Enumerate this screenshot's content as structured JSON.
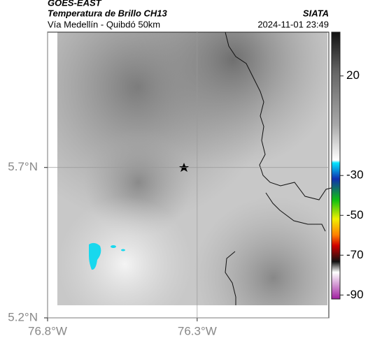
{
  "header": {
    "source": "GOES-EAST",
    "title": "Temperatura de Brillo CH13",
    "brand": "SIATA",
    "subtitle": "Vía Medellín - Quibdó 50km",
    "timestamp": "2024-11-01 23:49"
  },
  "map": {
    "xlim": [
      -76.8,
      -75.86
    ],
    "ylim": [
      5.2,
      6.15
    ],
    "xticks": [
      {
        "value": -76.8,
        "label": "76.8°W"
      },
      {
        "value": -76.3,
        "label": "76.3°W"
      }
    ],
    "yticks": [
      {
        "value": 5.7,
        "label": "5.7°N"
      },
      {
        "value": 5.2,
        "label": "5.2°N"
      }
    ]
  },
  "colorbar": {
    "lim": [
      -92,
      42
    ],
    "ticks": [
      20,
      -30,
      -50,
      -70,
      -90
    ]
  }
}
